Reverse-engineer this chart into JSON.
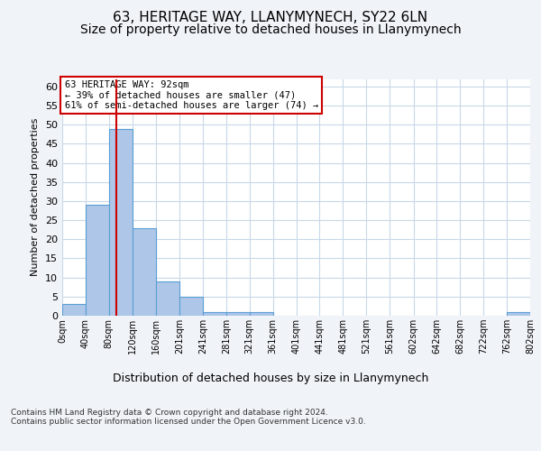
{
  "title1": "63, HERITAGE WAY, LLANYMYNECH, SY22 6LN",
  "title2": "Size of property relative to detached houses in Llanymynech",
  "xlabel": "Distribution of detached houses by size in Llanymynech",
  "ylabel": "Number of detached properties",
  "bin_edges": [
    0,
    40,
    80,
    120,
    160,
    201,
    241,
    281,
    321,
    361,
    401,
    441,
    481,
    521,
    561,
    602,
    642,
    682,
    722,
    762,
    802
  ],
  "bin_labels": [
    "0sqm",
    "40sqm",
    "80sqm",
    "120sqm",
    "160sqm",
    "201sqm",
    "241sqm",
    "281sqm",
    "321sqm",
    "361sqm",
    "401sqm",
    "441sqm",
    "481sqm",
    "521sqm",
    "561sqm",
    "602sqm",
    "642sqm",
    "682sqm",
    "722sqm",
    "762sqm",
    "802sqm"
  ],
  "counts": [
    3,
    29,
    49,
    23,
    9,
    5,
    1,
    1,
    1,
    0,
    0,
    0,
    0,
    0,
    0,
    0,
    0,
    0,
    0,
    1
  ],
  "bar_color": "#aec6e8",
  "bar_edge_color": "#5a9fd4",
  "grid_color": "#c8d8e8",
  "property_size": 92,
  "vline_color": "#cc0000",
  "annotation_text": "63 HERITAGE WAY: 92sqm\n← 39% of detached houses are smaller (47)\n61% of semi-detached houses are larger (74) →",
  "annotation_box_color": "white",
  "annotation_box_edge": "#cc0000",
  "ylim": [
    0,
    62
  ],
  "yticks": [
    0,
    5,
    10,
    15,
    20,
    25,
    30,
    35,
    40,
    45,
    50,
    55,
    60
  ],
  "footer_text": "Contains HM Land Registry data © Crown copyright and database right 2024.\nContains public sector information licensed under the Open Government Licence v3.0.",
  "background_color": "#f0f4f8",
  "plot_bg_color": "white",
  "title1_fontsize": 11,
  "title2_fontsize": 10
}
